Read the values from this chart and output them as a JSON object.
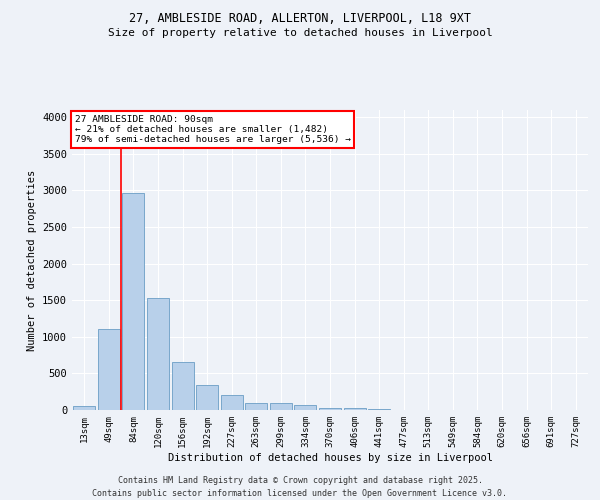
{
  "title_line1": "27, AMBLESIDE ROAD, ALLERTON, LIVERPOOL, L18 9XT",
  "title_line2": "Size of property relative to detached houses in Liverpool",
  "xlabel": "Distribution of detached houses by size in Liverpool",
  "ylabel": "Number of detached properties",
  "bar_color": "#b8d0ea",
  "bar_edge_color": "#6a9ec5",
  "categories": [
    "13sqm",
    "49sqm",
    "84sqm",
    "120sqm",
    "156sqm",
    "192sqm",
    "227sqm",
    "263sqm",
    "299sqm",
    "334sqm",
    "370sqm",
    "406sqm",
    "441sqm",
    "477sqm",
    "513sqm",
    "549sqm",
    "584sqm",
    "620sqm",
    "656sqm",
    "691sqm",
    "727sqm"
  ],
  "values": [
    50,
    1110,
    2960,
    1530,
    660,
    340,
    210,
    90,
    90,
    70,
    30,
    30,
    20,
    0,
    0,
    0,
    0,
    0,
    0,
    0,
    0
  ],
  "ylim": [
    0,
    4100
  ],
  "yticks": [
    0,
    500,
    1000,
    1500,
    2000,
    2500,
    3000,
    3500,
    4000
  ],
  "red_line_x": 1.5,
  "background_color": "#eef2f8",
  "grid_color": "#ffffff",
  "annotation_line1": "27 AMBLESIDE ROAD: 90sqm",
  "annotation_line2": "← 21% of detached houses are smaller (1,482)",
  "annotation_line3": "79% of semi-detached houses are larger (5,536) →",
  "footer_line1": "Contains HM Land Registry data © Crown copyright and database right 2025.",
  "footer_line2": "Contains public sector information licensed under the Open Government Licence v3.0."
}
